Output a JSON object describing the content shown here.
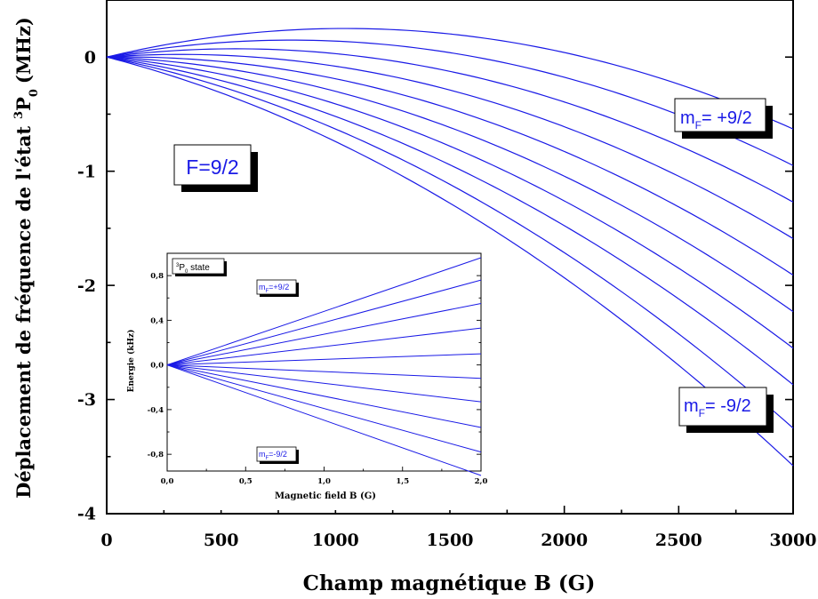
{
  "chart_data": [
    {
      "type": "line",
      "title": "",
      "xlabel": "Champ magnétique B (G)",
      "ylabel": {
        "main": "Déplacement de fréquence de l'état",
        "sup": "3",
        "letter": "P",
        "sub": "0",
        "unit": "(MHz)"
      },
      "xlim": [
        0,
        3000
      ],
      "ylim": [
        -4,
        0.5
      ],
      "xticks": [
        0,
        500,
        1000,
        1500,
        2000,
        2500,
        3000
      ],
      "xtick_labels": [
        "0",
        "500",
        "1000",
        "1500",
        "2000",
        "2500",
        "3000"
      ],
      "yticks": [
        0,
        -1,
        -2,
        -3,
        -4
      ],
      "ytick_labels": [
        "0",
        "-1",
        "-2",
        "-3",
        "-4"
      ],
      "grid": false,
      "line_color": "#1a1ae6",
      "series": [
        {
          "x": [
            0,
            1000,
            3000
          ],
          "y": [
            0,
            0.25,
            -0.63
          ]
        },
        {
          "x": [
            0,
            1000,
            3000
          ],
          "y": [
            0,
            0.14,
            -0.95
          ]
        },
        {
          "x": [
            0,
            1000,
            3000
          ],
          "y": [
            0,
            0.03,
            -1.27
          ]
        },
        {
          "x": [
            0,
            1000,
            3000
          ],
          "y": [
            0,
            -0.08,
            -1.59
          ]
        },
        {
          "x": [
            0,
            1000,
            3000
          ],
          "y": [
            0,
            -0.19,
            -1.91
          ]
        },
        {
          "x": [
            0,
            1000,
            3000
          ],
          "y": [
            0,
            -0.3,
            -2.23
          ]
        },
        {
          "x": [
            0,
            1000,
            3000
          ],
          "y": [
            0,
            -0.41,
            -2.55
          ]
        },
        {
          "x": [
            0,
            1000,
            3000
          ],
          "y": [
            0,
            -0.52,
            -2.87
          ]
        },
        {
          "x": [
            0,
            1000,
            3000
          ],
          "y": [
            0,
            -0.63,
            -3.25
          ]
        },
        {
          "x": [
            0,
            1000,
            3000
          ],
          "y": [
            0,
            -0.74,
            -3.58
          ]
        }
      ],
      "annotations": {
        "f_label": "F=9/2",
        "mf_top": {
          "prefix": "m",
          "sub": "F",
          "value": "= +9/2"
        },
        "mf_bottom": {
          "prefix": "m",
          "sub": "F",
          "value": "= -9/2"
        }
      }
    },
    {
      "type": "line",
      "title": "",
      "xlabel": "Magnetic field B (G)",
      "ylabel": "Energie  (kHz)",
      "xlim": [
        0,
        2.0
      ],
      "ylim": [
        -0.95,
        1.0
      ],
      "xticks": [
        0,
        0.5,
        1.0,
        1.5,
        2.0
      ],
      "xtick_labels": [
        "0,0",
        "0,5",
        "1,0",
        "1,5",
        "2,0"
      ],
      "yticks": [
        0.8,
        0.4,
        0.0,
        -0.4,
        -0.8
      ],
      "ytick_labels": [
        "0,8",
        "0,4",
        "0,0",
        "-0,4",
        "-0,8"
      ],
      "grid": false,
      "line_color": "#1a1ae6",
      "series": [
        {
          "x": [
            0,
            2.0
          ],
          "y": [
            0,
            0.96
          ]
        },
        {
          "x": [
            0,
            2.0
          ],
          "y": [
            0,
            0.76
          ]
        },
        {
          "x": [
            0,
            2.0
          ],
          "y": [
            0,
            0.55
          ]
        },
        {
          "x": [
            0,
            2.0
          ],
          "y": [
            0,
            0.33
          ]
        },
        {
          "x": [
            0,
            2.0
          ],
          "y": [
            0,
            0.1
          ]
        },
        {
          "x": [
            0,
            2.0
          ],
          "y": [
            0,
            -0.12
          ]
        },
        {
          "x": [
            0,
            2.0
          ],
          "y": [
            0,
            -0.33
          ]
        },
        {
          "x": [
            0,
            2.0
          ],
          "y": [
            0,
            -0.56
          ]
        },
        {
          "x": [
            0,
            2.0
          ],
          "y": [
            0,
            -0.78
          ]
        },
        {
          "x": [
            0,
            2.0
          ],
          "y": [
            0,
            -0.99
          ]
        }
      ],
      "annotations": {
        "state": {
          "sup": "3",
          "letter": "P",
          "sub": "0",
          "text": " state"
        },
        "mf_top": {
          "prefix": "m",
          "sub": "F",
          "value": "=+9/2"
        },
        "mf_bottom": {
          "prefix": "m",
          "sub": "F",
          "value": "=-9/2"
        }
      }
    }
  ]
}
